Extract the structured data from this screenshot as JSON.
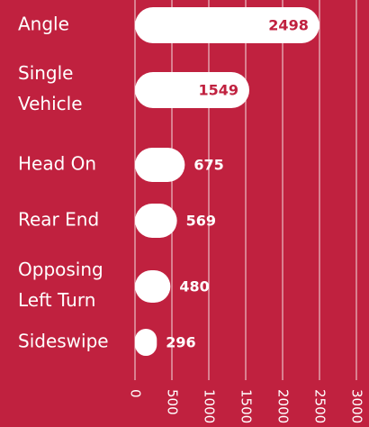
{
  "chart_data": {
    "type": "bar",
    "orientation": "horizontal",
    "categories": [
      "Angle",
      "Single Vehicle",
      "Head On",
      "Rear End",
      "Opposing Left Turn",
      "Sideswipe"
    ],
    "values": [
      2498,
      1549,
      675,
      569,
      480,
      296
    ],
    "color": "#ffffff",
    "xlim": [
      0,
      3000
    ],
    "xticks": [
      0,
      500,
      1000,
      1500,
      2000,
      2500,
      3000
    ],
    "grid": true
  }
}
